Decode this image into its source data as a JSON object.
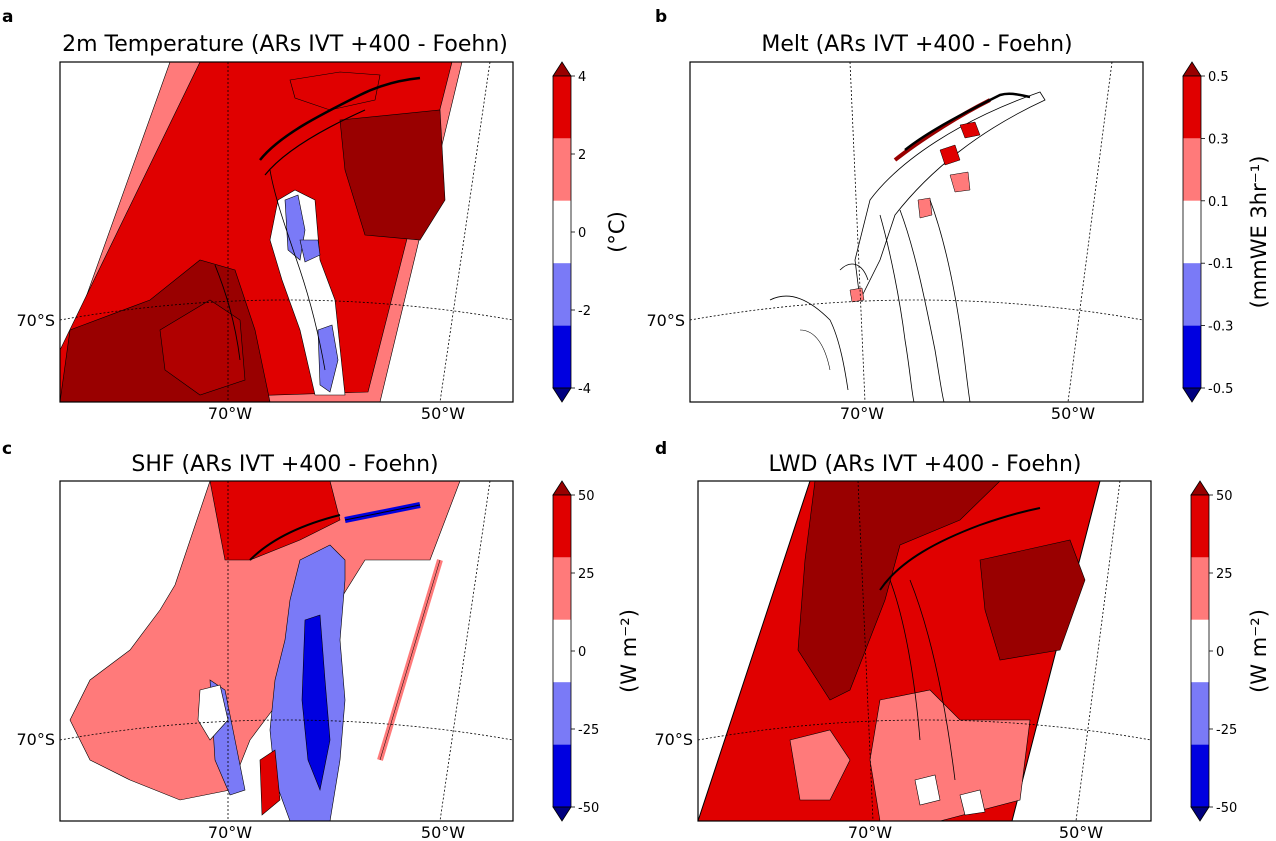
{
  "palette": {
    "levels": [
      "#00007f",
      "#0000e0",
      "#7a7af7",
      "#ffffff",
      "#ff7a7a",
      "#e00000",
      "#990000"
    ],
    "land_dark": "#990000"
  },
  "panels": [
    {
      "letter": "a",
      "title": "2m Temperature (ARs IVT +400  - Foehn)",
      "cb_ticks": [
        "4",
        "2",
        "0",
        "-2",
        "-4"
      ],
      "cb_label": "(°C)",
      "lat_label": "70°S",
      "lon_labels": [
        "70°W",
        "50°W"
      ],
      "field": "temp"
    },
    {
      "letter": "b",
      "title": "Melt (ARs IVT +400  - Foehn)",
      "cb_ticks": [
        "0.5",
        "0.3",
        "0.1",
        "-0.1",
        "-0.3",
        "-0.5"
      ],
      "cb_label": "(mmWE 3hr⁻¹)",
      "lat_label": "70°S",
      "lon_labels": [
        "70°W",
        "50°W"
      ],
      "field": "melt"
    },
    {
      "letter": "c",
      "title": "SHF (ARs IVT +400  - Foehn)",
      "cb_ticks": [
        "50",
        "25",
        "0",
        "-25",
        "-50"
      ],
      "cb_label": "(W m⁻²)",
      "lat_label": "70°S",
      "lon_labels": [
        "70°W",
        "50°W"
      ],
      "field": "shf"
    },
    {
      "letter": "d",
      "title": "LWD (ARs IVT +400  - Foehn)",
      "cb_ticks": [
        "50",
        "25",
        "0",
        "-25",
        "-50"
      ],
      "cb_label": "(W m⁻²)",
      "lat_label": "70°S",
      "lon_labels": [
        "70°W",
        "50°W"
      ],
      "field": "lwd"
    }
  ],
  "chart_data": [
    {
      "type": "heatmap",
      "title": "2m Temperature (ARs IVT +400  - Foehn)",
      "colorbar": {
        "label": "(°C)",
        "levels": [
          -4,
          -3,
          -2,
          -1,
          0,
          1,
          2,
          3,
          4
        ],
        "tick_values": [
          -4,
          -2,
          0,
          2,
          4
        ],
        "extend": "both"
      },
      "lat_labels": [
        "70°S"
      ],
      "lon_labels": [
        "70°W",
        "50°W"
      ]
    },
    {
      "type": "heatmap",
      "title": "Melt (ARs IVT +400  - Foehn)",
      "colorbar": {
        "label": "(mmWE 3hr⁻¹)",
        "levels": [
          -0.5,
          -0.3,
          -0.1,
          0.1,
          0.3,
          0.5
        ],
        "tick_values": [
          -0.5,
          -0.3,
          -0.1,
          0.1,
          0.3,
          0.5
        ],
        "extend": "both"
      },
      "lat_labels": [
        "70°S"
      ],
      "lon_labels": [
        "70°W",
        "50°W"
      ]
    },
    {
      "type": "heatmap",
      "title": "SHF (ARs IVT +400  - Foehn)",
      "colorbar": {
        "label": "(W m⁻²)",
        "levels": [
          -50,
          -25,
          0,
          25,
          50
        ],
        "tick_values": [
          -50,
          -25,
          0,
          25,
          50
        ],
        "extend": "both"
      },
      "lat_labels": [
        "70°S"
      ],
      "lon_labels": [
        "70°W",
        "50°W"
      ]
    },
    {
      "type": "heatmap",
      "title": "LWD (ARs IVT +400  - Foehn)",
      "colorbar": {
        "label": "(W m⁻²)",
        "levels": [
          -50,
          -25,
          0,
          25,
          50
        ],
        "tick_values": [
          -50,
          -25,
          0,
          25,
          50
        ],
        "extend": "both"
      },
      "lat_labels": [
        "70°S"
      ],
      "lon_labels": [
        "70°W",
        "50°W"
      ]
    }
  ]
}
